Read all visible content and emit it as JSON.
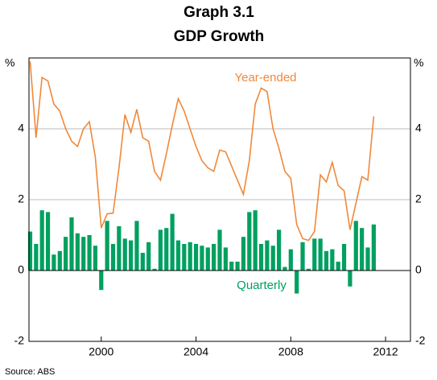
{
  "chart_data": {
    "type": "bar-line",
    "title": "Graph 3.1",
    "subtitle": "GDP Growth",
    "y_unit_left": "%",
    "y_unit_right": "%",
    "source": "Source: ABS",
    "x": [
      1997,
      1997.25,
      1997.5,
      1997.75,
      1998,
      1998.25,
      1998.5,
      1998.75,
      1999,
      1999.25,
      1999.5,
      1999.75,
      2000,
      2000.25,
      2000.5,
      2000.75,
      2001,
      2001.25,
      2001.5,
      2001.75,
      2002,
      2002.25,
      2002.5,
      2002.75,
      2003,
      2003.25,
      2003.5,
      2003.75,
      2004,
      2004.25,
      2004.5,
      2004.75,
      2005,
      2005.25,
      2005.5,
      2005.75,
      2006,
      2006.25,
      2006.5,
      2006.75,
      2007,
      2007.25,
      2007.5,
      2007.75,
      2008,
      2008.25,
      2008.5,
      2008.75,
      2009,
      2009.25,
      2009.5,
      2009.75,
      2010,
      2010.25,
      2010.5,
      2010.75,
      2011,
      2011.25,
      2011.5
    ],
    "series": [
      {
        "name": "Quarterly",
        "kind": "bar",
        "color": "#00a060",
        "values": [
          1.1,
          0.75,
          1.7,
          1.65,
          0.45,
          0.55,
          0.95,
          1.5,
          1.05,
          0.95,
          1.0,
          0.7,
          -0.55,
          1.4,
          0.75,
          1.25,
          0.9,
          0.85,
          1.4,
          0.5,
          0.8,
          0.05,
          1.15,
          1.2,
          1.6,
          0.85,
          0.75,
          0.8,
          0.75,
          0.7,
          0.65,
          0.75,
          1.15,
          0.65,
          0.25,
          0.25,
          0.95,
          1.65,
          1.7,
          0.75,
          0.85,
          0.7,
          1.15,
          0.1,
          0.6,
          -0.65,
          0.8,
          0.05,
          0.9,
          0.9,
          0.55,
          0.6,
          0.25,
          0.75,
          -0.45,
          1.4,
          1.2,
          0.65,
          1.3
        ]
      },
      {
        "name": "Year-ended",
        "kind": "line",
        "color": "#f0883a",
        "values": [
          5.9,
          3.75,
          5.45,
          5.35,
          4.7,
          4.5,
          4.0,
          3.65,
          3.5,
          4.0,
          4.2,
          3.2,
          1.2,
          1.6,
          1.62,
          2.9,
          4.4,
          3.9,
          4.55,
          3.75,
          3.65,
          2.8,
          2.55,
          3.3,
          4.1,
          4.85,
          4.5,
          4.0,
          3.5,
          3.1,
          2.9,
          2.8,
          3.4,
          3.35,
          2.95,
          2.55,
          2.15,
          3.1,
          4.7,
          5.15,
          5.05,
          4.0,
          3.45,
          2.8,
          2.6,
          1.3,
          0.9,
          0.85,
          1.1,
          2.7,
          2.5,
          3.05,
          2.4,
          2.25,
          1.15,
          1.9,
          2.65,
          2.55,
          4.35
        ]
      }
    ],
    "xlim": [
      1996.95,
      2013.05
    ],
    "xticks": [
      2000,
      2004,
      2008,
      2012
    ],
    "ylim": [
      -2,
      6
    ],
    "yticks": [
      -2,
      0,
      2,
      4
    ],
    "grid": true
  }
}
